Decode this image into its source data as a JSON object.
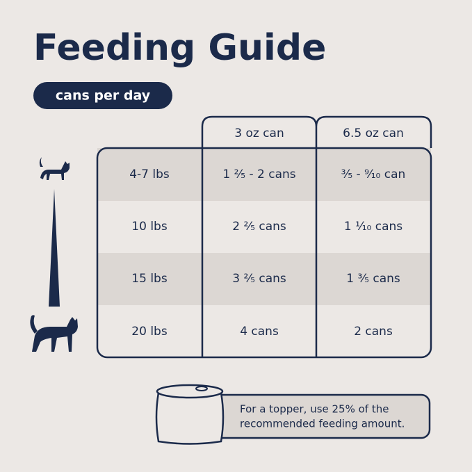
{
  "header": {
    "title": "Feeding Guide",
    "badge": "cans per day"
  },
  "table": {
    "columns": [
      "3 oz can",
      "6.5 oz can"
    ],
    "rows": [
      [
        "4-7 lbs",
        "1 ²⁄₅ - 2 cans",
        "³⁄₅ - ⁹⁄₁₀ can"
      ],
      [
        "10 lbs",
        "2 ²⁄₅ cans",
        "1 ¹⁄₁₀ cans"
      ],
      [
        "15 lbs",
        "3 ²⁄₅ cans",
        "1 ³⁄₅ cans"
      ],
      [
        "20 lbs",
        "4 cans",
        "2 cans"
      ]
    ]
  },
  "note": {
    "lines": [
      "For a topper, use 25% of the",
      "recommended feeding amount."
    ]
  }
}
